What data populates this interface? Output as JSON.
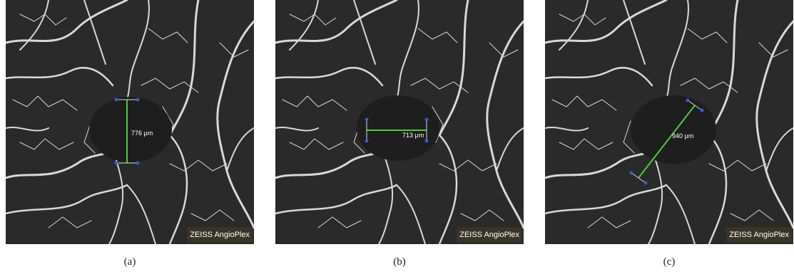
{
  "panels": [
    {
      "caption": "(a)",
      "measurement": "776 μm",
      "watermark": "ZEISS AngioPlex",
      "line_color": "#4ccb3a",
      "handle_color": "#3a5ad6",
      "background_color": "#2a2a2a",
      "vessel_color": "#d8d8d8"
    },
    {
      "caption": "(b)",
      "measurement": "713 μm",
      "watermark": "ZEISS AngioPlex",
      "line_color": "#4ccb3a",
      "handle_color": "#3a5ad6",
      "background_color": "#2a2a2a",
      "vessel_color": "#d8d8d8"
    },
    {
      "caption": "(c)",
      "measurement": "940 μm",
      "watermark": "ZEISS AngioPlex",
      "line_color": "#4ccb3a",
      "handle_color": "#3a5ad6",
      "background_color": "#2a2a2a",
      "vessel_color": "#d8d8d8"
    }
  ]
}
